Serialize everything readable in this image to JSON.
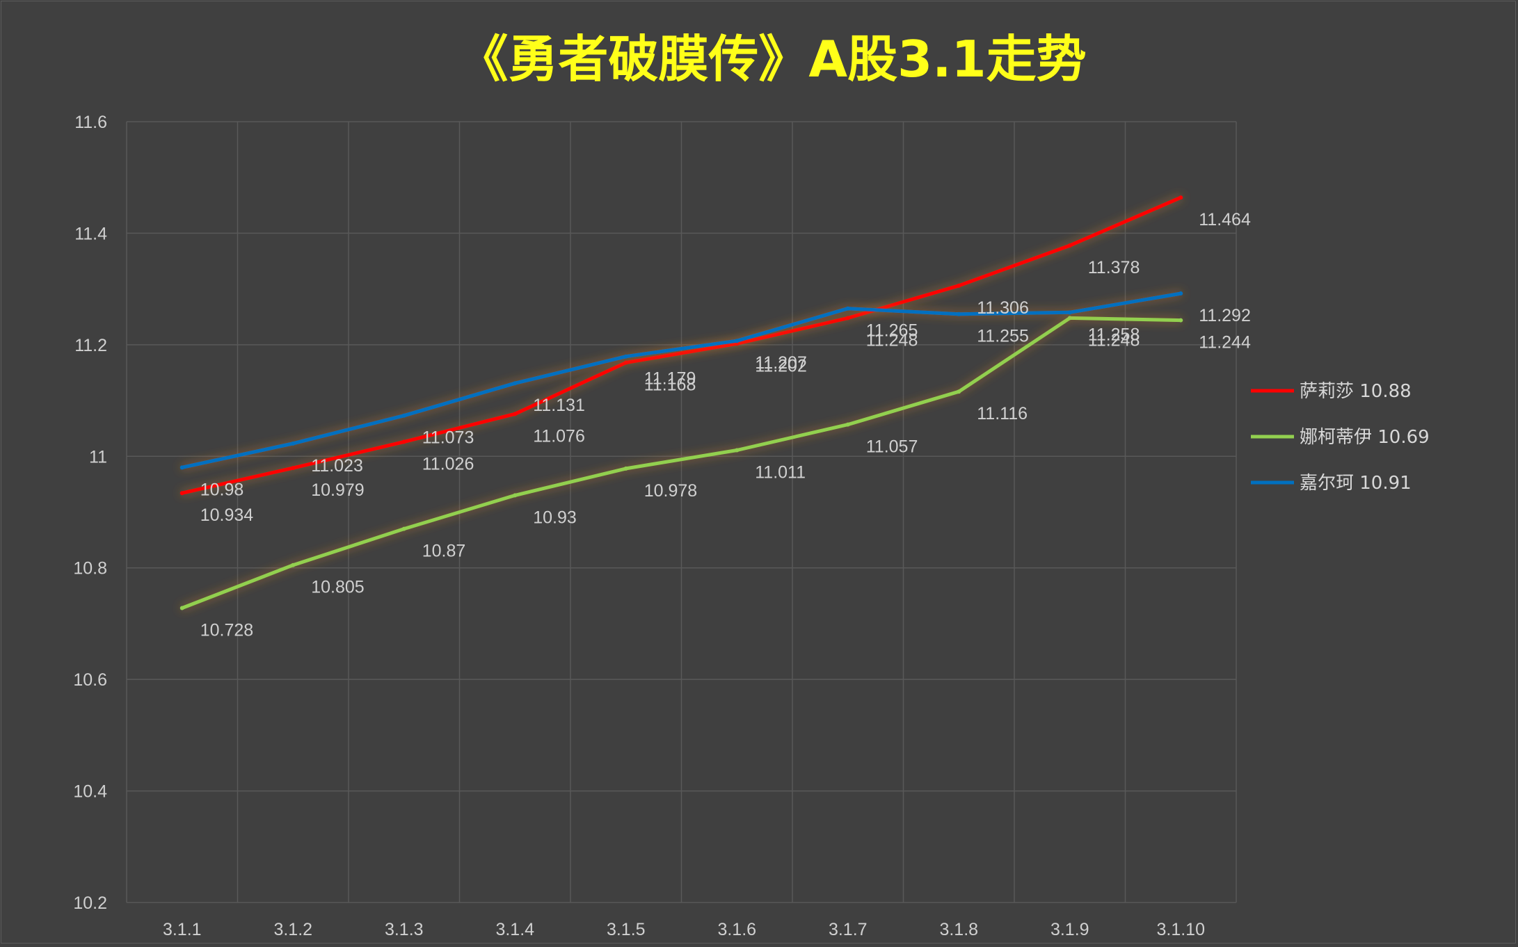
{
  "chart_data": {
    "type": "line",
    "title": "《勇者破膜传》A股3.1走势",
    "categories": [
      "3.1.1",
      "3.1.2",
      "3.1.3",
      "3.1.4",
      "3.1.5",
      "3.1.6",
      "3.1.7",
      "3.1.8",
      "3.1.9",
      "3.1.10"
    ],
    "ylim": [
      10.2,
      11.6
    ],
    "yticks": [
      "10.2",
      "10.4",
      "10.6",
      "10.8",
      "11",
      "11.2",
      "11.4",
      "11.6"
    ],
    "grid": true,
    "legend_position": "right",
    "series": [
      {
        "name": "萨莉莎 10.88",
        "color": "#ff0000",
        "values": [
          10.934,
          10.979,
          11.026,
          11.076,
          11.168,
          11.202,
          11.248,
          11.306,
          11.378,
          11.464
        ],
        "labels": [
          "10.934",
          "10.979",
          "11.026",
          "11.076",
          "11.168",
          "11.202",
          "11.248",
          "11.306",
          "11.378",
          "11.464"
        ]
      },
      {
        "name": "娜柯蒂伊 10.69",
        "color": "#92d050",
        "values": [
          10.728,
          10.805,
          10.87,
          10.93,
          10.978,
          11.011,
          11.057,
          11.116,
          11.248,
          11.244
        ],
        "labels": [
          "10.728",
          "10.805",
          "10.87",
          "10.93",
          "10.978",
          "11.011",
          "11.057",
          "11.116",
          "11.248",
          "11.244"
        ]
      },
      {
        "name": "嘉尔珂 10.91",
        "color": "#0070c0",
        "values": [
          10.98,
          11.023,
          11.073,
          11.131,
          11.179,
          11.207,
          11.265,
          11.255,
          11.258,
          11.292
        ],
        "labels": [
          "10.98",
          "11.023",
          "11.073",
          "11.131",
          "11.179",
          "11.207",
          "11.265",
          "11.255",
          "11.258",
          "11.292"
        ]
      }
    ]
  }
}
